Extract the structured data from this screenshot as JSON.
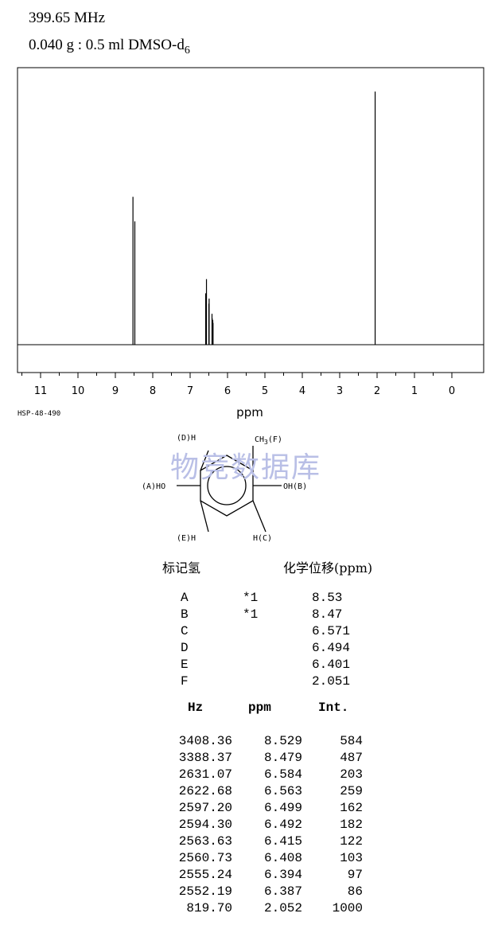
{
  "header": {
    "frequency": "399.65 MHz",
    "solvent": "0.040 g : 0.5 ml DMSO-d",
    "solvent_sub": "6"
  },
  "chart_data": {
    "type": "line",
    "xlabel": "ppm",
    "xlim": [
      11.7,
      -0.85
    ],
    "x_reversed": true,
    "ticks": [
      11,
      10,
      9,
      8,
      7,
      6,
      5,
      4,
      3,
      2,
      1,
      0
    ],
    "tick_labels": [
      "11",
      "10",
      "9",
      "8",
      "7",
      "6",
      "5",
      "4",
      "3",
      "2",
      "1",
      "0"
    ],
    "peaks": [
      {
        "ppm": 8.529,
        "int": 584
      },
      {
        "ppm": 8.479,
        "int": 487
      },
      {
        "ppm": 6.584,
        "int": 203
      },
      {
        "ppm": 6.563,
        "int": 259
      },
      {
        "ppm": 6.499,
        "int": 162
      },
      {
        "ppm": 6.492,
        "int": 182
      },
      {
        "ppm": 6.415,
        "int": 122
      },
      {
        "ppm": 6.408,
        "int": 103
      },
      {
        "ppm": 6.394,
        "int": 97
      },
      {
        "ppm": 6.387,
        "int": 86
      },
      {
        "ppm": 2.052,
        "int": 1000
      }
    ]
  },
  "code": "HSP-48-490",
  "molecule": {
    "label_d": "(D)H",
    "label_f_ch": "CH",
    "label_f_sub": "3",
    "label_f_tag": "(F)",
    "label_a": "(A)HO",
    "label_b": "OH(B)",
    "label_e": "(E)H",
    "label_c": "H(C)"
  },
  "watermark": "物竞数据库",
  "assign_header": {
    "left": "标记氢",
    "right": "化学位移(ppm)"
  },
  "assignments": [
    {
      "label": "A",
      "note": "*1",
      "shift": "8.53"
    },
    {
      "label": "B",
      "note": "*1",
      "shift": "8.47"
    },
    {
      "label": "C",
      "note": "",
      "shift": "6.571"
    },
    {
      "label": "D",
      "note": "",
      "shift": "6.494"
    },
    {
      "label": "E",
      "note": "",
      "shift": "6.401"
    },
    {
      "label": "F",
      "note": "",
      "shift": "2.051"
    }
  ],
  "peak_header": {
    "hz": "Hz",
    "ppm": "ppm",
    "int": "Int."
  },
  "peak_table": [
    {
      "hz": "3408.36",
      "ppm": "8.529",
      "int": "584"
    },
    {
      "hz": "3388.37",
      "ppm": "8.479",
      "int": "487"
    },
    {
      "hz": "2631.07",
      "ppm": "6.584",
      "int": "203"
    },
    {
      "hz": "2622.68",
      "ppm": "6.563",
      "int": "259"
    },
    {
      "hz": "2597.20",
      "ppm": "6.499",
      "int": "162"
    },
    {
      "hz": "2594.30",
      "ppm": "6.492",
      "int": "182"
    },
    {
      "hz": "2563.63",
      "ppm": "6.415",
      "int": "122"
    },
    {
      "hz": "2560.73",
      "ppm": "6.408",
      "int": "103"
    },
    {
      "hz": "2555.24",
      "ppm": "6.394",
      "int": "97"
    },
    {
      "hz": "2552.19",
      "ppm": "6.387",
      "int": "86"
    },
    {
      "hz": "819.70",
      "ppm": "2.052",
      "int": "1000"
    }
  ]
}
